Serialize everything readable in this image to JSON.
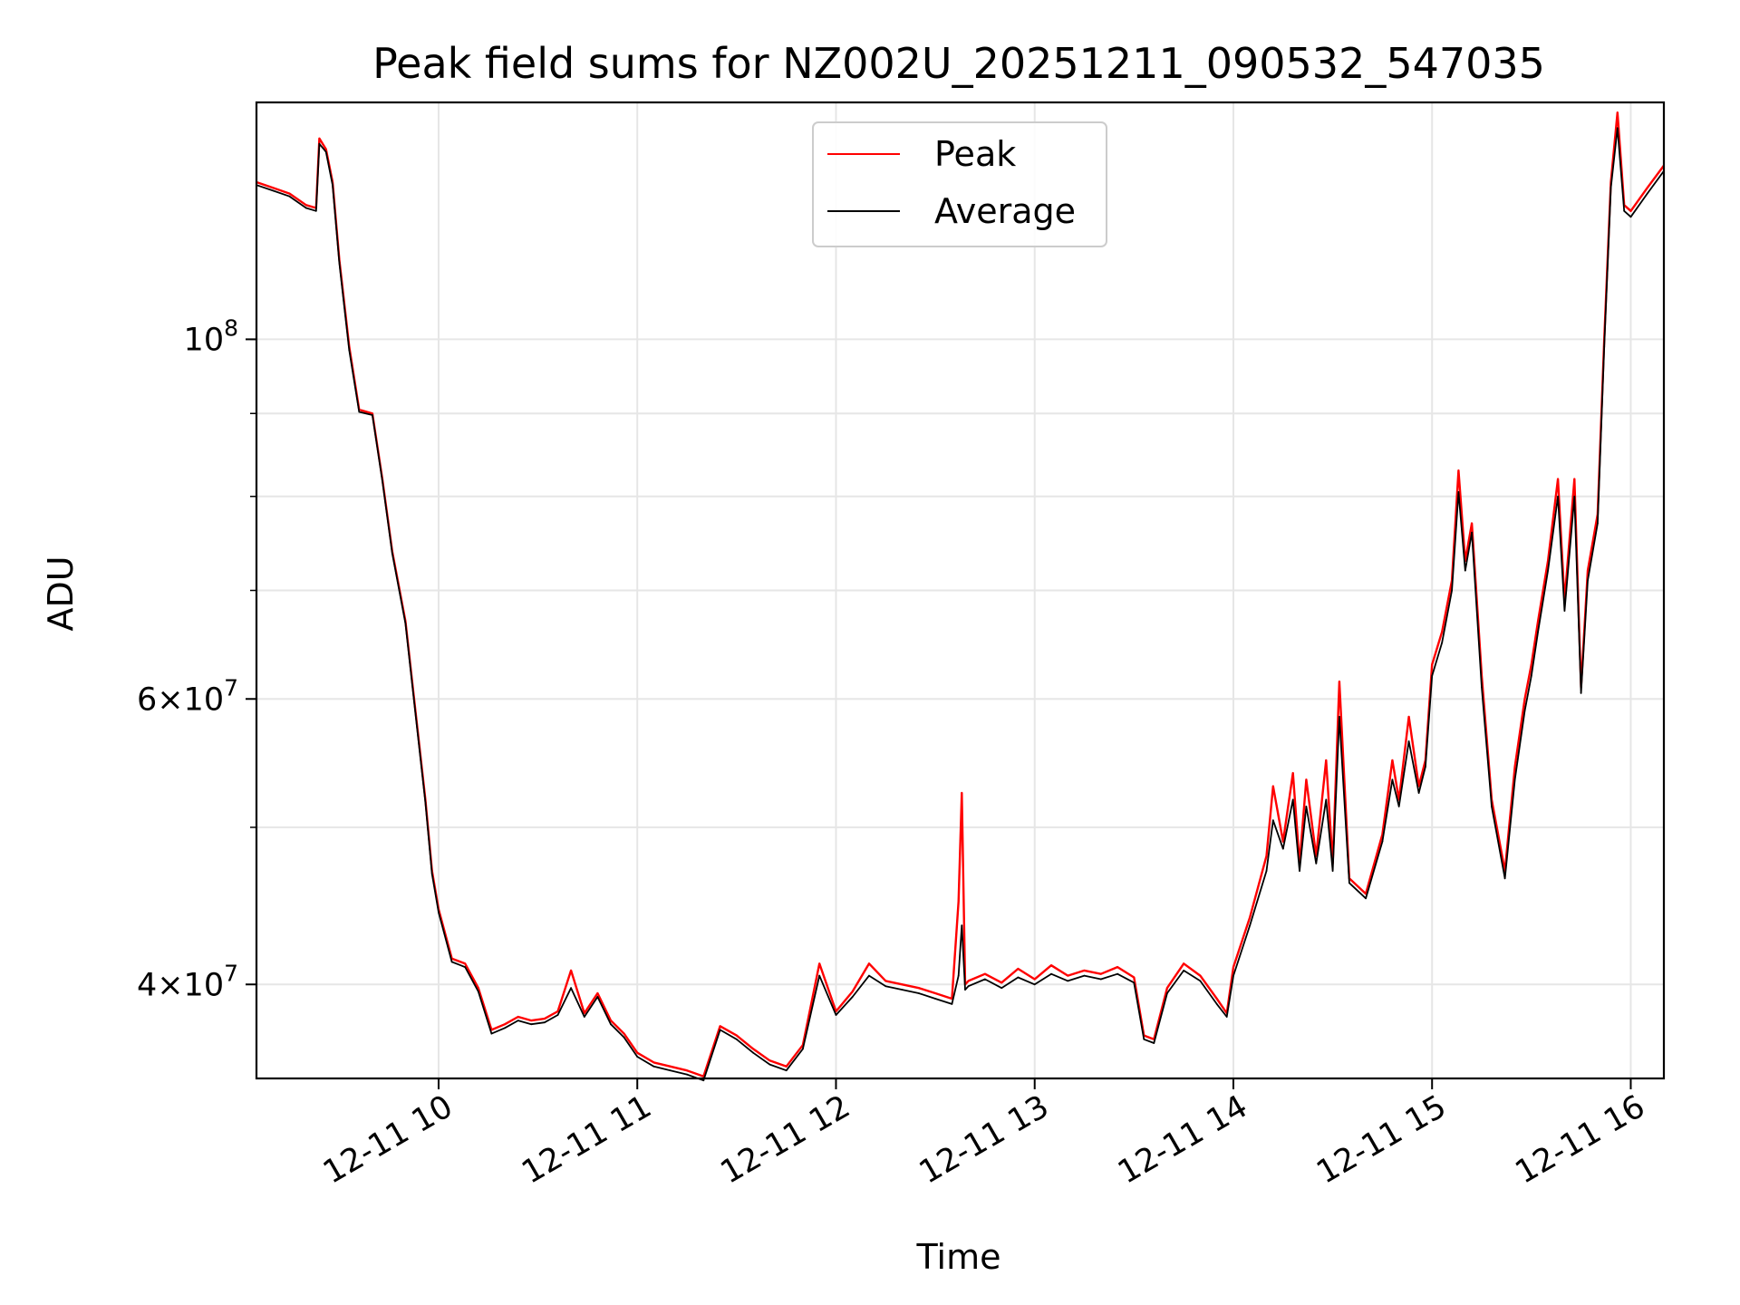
{
  "chart_data": {
    "type": "line",
    "title": "Peak field sums for NZ002U_20251211_090532_547035",
    "xlabel": "Time",
    "ylabel": "ADU",
    "yscale": "log",
    "ylim": [
      35000000,
      140000000
    ],
    "xlim": [
      "12-11 09:05",
      "12-11 16:10"
    ],
    "grid": true,
    "legend_position": "top-center",
    "x_ticks": [
      "12-11 10",
      "12-11 11",
      "12-11 12",
      "12-11 13",
      "12-11 14",
      "12-11 15",
      "12-11 16"
    ],
    "y_ticks": [
      {
        "value": 100000000,
        "label": "10^8"
      },
      {
        "value": 60000000,
        "label": "6×10^7"
      },
      {
        "value": 40000000,
        "label": "4×10^7"
      }
    ],
    "x": [
      "09:05",
      "09:10",
      "09:15",
      "09:20",
      "09:23",
      "09:24",
      "09:26",
      "09:28",
      "09:30",
      "09:33",
      "09:36",
      "09:40",
      "09:43",
      "09:46",
      "09:50",
      "09:53",
      "09:56",
      "09:58",
      "10:00",
      "10:04",
      "10:08",
      "10:12",
      "10:16",
      "10:20",
      "10:24",
      "10:28",
      "10:32",
      "10:36",
      "10:40",
      "10:44",
      "10:48",
      "10:52",
      "10:56",
      "11:00",
      "11:05",
      "11:10",
      "11:15",
      "11:20",
      "11:25",
      "11:30",
      "11:35",
      "11:40",
      "11:45",
      "11:50",
      "11:55",
      "12:00",
      "12:05",
      "12:10",
      "12:15",
      "12:20",
      "12:25",
      "12:30",
      "12:35",
      "12:37",
      "12:38",
      "12:39",
      "12:40",
      "12:45",
      "12:50",
      "12:55",
      "13:00",
      "13:05",
      "13:10",
      "13:15",
      "13:20",
      "13:25",
      "13:30",
      "13:33",
      "13:36",
      "13:40",
      "13:45",
      "13:50",
      "13:55",
      "13:58",
      "14:00",
      "14:05",
      "14:10",
      "14:12",
      "14:15",
      "14:18",
      "14:20",
      "14:22",
      "14:25",
      "14:28",
      "14:30",
      "14:32",
      "14:35",
      "14:40",
      "14:45",
      "14:48",
      "14:50",
      "14:53",
      "14:56",
      "14:58",
      "15:00",
      "15:03",
      "15:06",
      "15:08",
      "15:10",
      "15:12",
      "15:15",
      "15:18",
      "15:22",
      "15:25",
      "15:28",
      "15:30",
      "15:32",
      "15:35",
      "15:38",
      "15:40",
      "15:43",
      "15:45",
      "15:47",
      "15:50",
      "15:52",
      "15:54",
      "15:56",
      "15:58",
      "16:00",
      "16:05",
      "16:10"
    ],
    "series": [
      {
        "name": "Peak",
        "color": "#ff0000",
        "values": [
          125000000,
          124000000,
          123000000,
          121000000,
          120500000,
          133000000,
          131000000,
          125000000,
          112000000,
          99000000,
          90500000,
          90000000,
          82000000,
          74000000,
          67000000,
          59000000,
          52000000,
          47000000,
          44500000,
          41500000,
          41200000,
          39800000,
          37500000,
          37800000,
          38200000,
          38000000,
          38100000,
          38500000,
          40800000,
          38400000,
          39500000,
          38000000,
          37300000,
          36300000,
          35800000,
          35600000,
          35400000,
          35100000,
          37700000,
          37200000,
          36500000,
          35900000,
          35600000,
          36700000,
          41200000,
          38500000,
          39600000,
          41200000,
          40200000,
          40000000,
          39800000,
          39500000,
          39200000,
          45000000,
          52500000,
          40000000,
          40200000,
          40600000,
          40100000,
          40900000,
          40300000,
          41100000,
          40500000,
          40800000,
          40600000,
          41000000,
          40400000,
          37200000,
          37000000,
          39800000,
          41200000,
          40500000,
          39200000,
          38400000,
          41000000,
          44000000,
          48000000,
          53000000,
          49000000,
          54000000,
          47500000,
          53500000,
          48000000,
          55000000,
          47500000,
          61500000,
          46500000,
          45500000,
          49500000,
          55000000,
          52000000,
          58500000,
          53000000,
          55000000,
          63000000,
          66000000,
          71000000,
          83000000,
          73000000,
          77000000,
          62000000,
          52000000,
          47000000,
          54500000,
          60000000,
          63000000,
          67000000,
          73000000,
          82000000,
          69000000,
          82000000,
          61000000,
          72000000,
          78000000,
          100000000,
          125000000,
          138000000,
          121000000,
          120000000,
          124000000,
          128000000
        ]
      },
      {
        "name": "Average",
        "color": "#000000",
        "values": [
          124500000,
          123500000,
          122500000,
          120500000,
          120000000,
          132000000,
          130500000,
          124500000,
          111500000,
          98500000,
          90200000,
          89800000,
          81800000,
          73800000,
          66800000,
          58800000,
          51800000,
          46800000,
          44300000,
          41300000,
          41000000,
          39600000,
          37300000,
          37600000,
          38000000,
          37800000,
          37900000,
          38300000,
          39800000,
          38200000,
          39300000,
          37800000,
          37100000,
          36100000,
          35600000,
          35400000,
          35200000,
          34900000,
          37500000,
          37000000,
          36300000,
          35700000,
          35400000,
          36500000,
          40500000,
          38300000,
          39300000,
          40500000,
          39900000,
          39700000,
          39500000,
          39200000,
          38900000,
          40500000,
          43500000,
          39700000,
          39900000,
          40300000,
          39800000,
          40400000,
          40000000,
          40600000,
          40200000,
          40500000,
          40300000,
          40600000,
          40100000,
          37000000,
          36800000,
          39500000,
          40800000,
          40200000,
          38900000,
          38200000,
          40500000,
          43500000,
          47000000,
          50500000,
          48500000,
          52000000,
          47000000,
          51500000,
          47500000,
          52000000,
          47000000,
          58500000,
          46200000,
          45200000,
          49000000,
          53500000,
          51500000,
          56500000,
          52500000,
          54500000,
          62000000,
          65000000,
          70000000,
          80500000,
          72000000,
          76000000,
          61000000,
          51500000,
          46500000,
          53500000,
          59000000,
          62000000,
          66000000,
          72000000,
          80000000,
          68000000,
          80000000,
          60500000,
          71000000,
          77000000,
          99000000,
          124000000,
          135000000,
          120000000,
          119000000,
          123000000,
          127000000
        ]
      }
    ]
  }
}
